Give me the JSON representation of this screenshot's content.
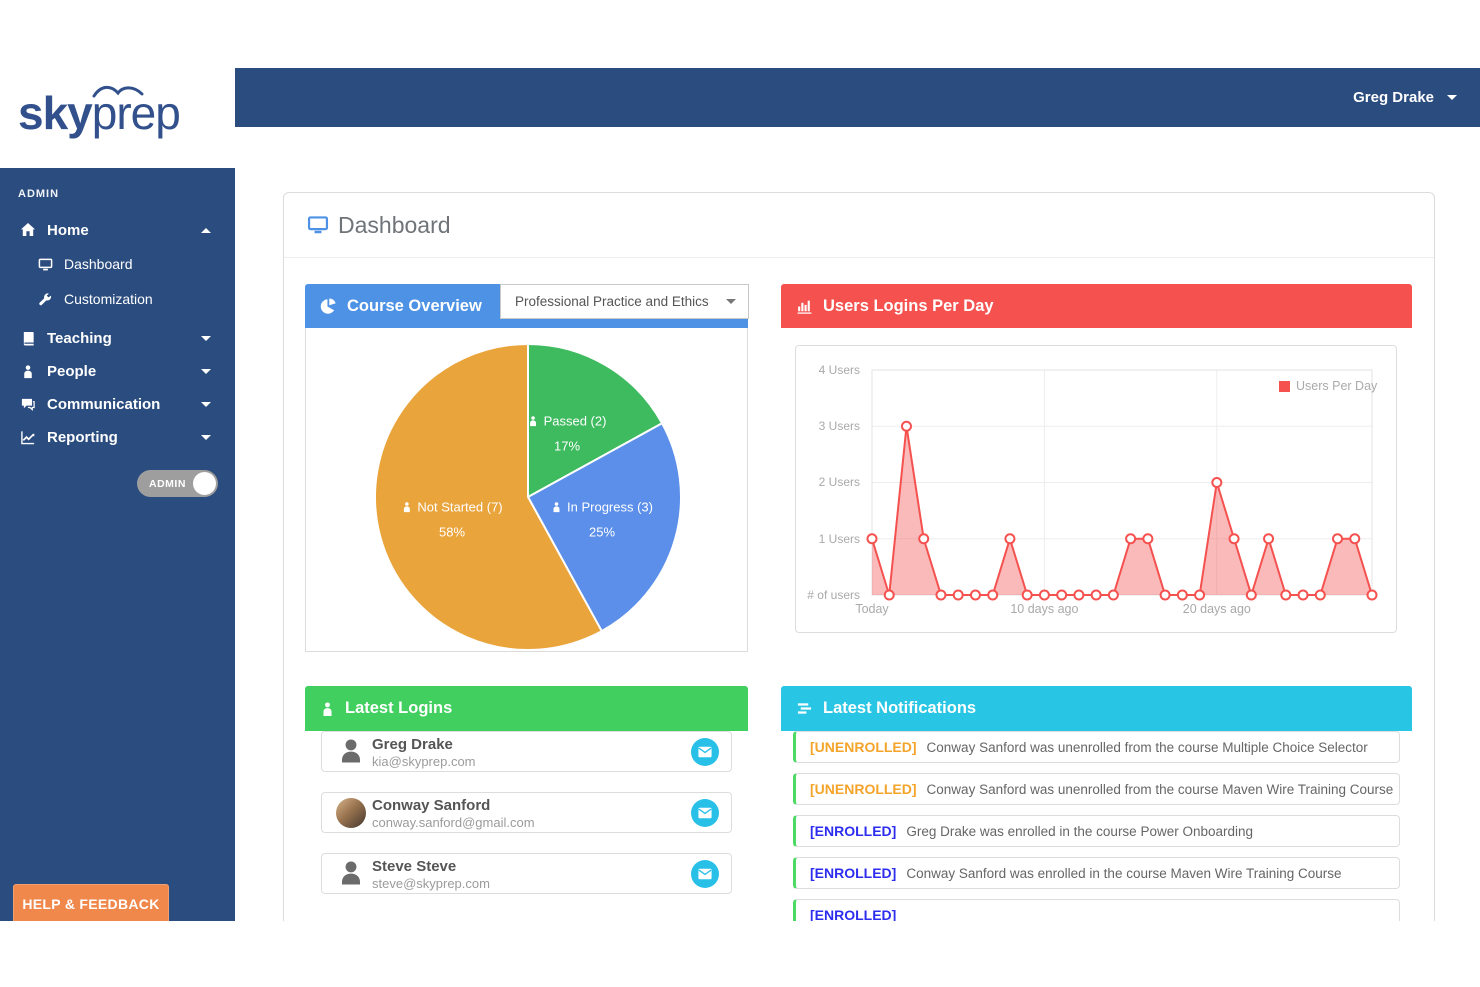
{
  "logo": {
    "text_bold": "sky",
    "text_light": "prep"
  },
  "navbar": {
    "user_menu": "Greg Drake"
  },
  "sidebar": {
    "section_label": "ADMIN",
    "items": [
      {
        "label": "Home",
        "icon": "home-icon",
        "expanded": true
      },
      {
        "label": "Dashboard",
        "icon": "monitor-icon",
        "sub": true
      },
      {
        "label": "Customization",
        "icon": "wrench-icon",
        "sub": true
      },
      {
        "label": "Teaching",
        "icon": "book-icon"
      },
      {
        "label": "People",
        "icon": "person-icon"
      },
      {
        "label": "Communication",
        "icon": "chat-icon"
      },
      {
        "label": "Reporting",
        "icon": "chart-line-icon"
      }
    ],
    "admin_toggle": {
      "label": "ADMIN",
      "state": "on"
    },
    "help_button": "HELP & FEEDBACK"
  },
  "page": {
    "title": "Dashboard"
  },
  "panels": {
    "course_overview": {
      "title": "Course Overview",
      "course_selector": "Professional Practice and Ethics"
    },
    "user_logins": {
      "title": "Users Logins Per Day"
    },
    "latest_logins": {
      "title": "Latest Logins",
      "users": [
        {
          "name": "Greg Drake",
          "email": "kia@skyprep.com",
          "avatar": "silhouette"
        },
        {
          "name": "Conway Sanford",
          "email": "conway.sanford@gmail.com",
          "avatar": "photo"
        },
        {
          "name": "Steve Steve",
          "email": "steve@skyprep.com",
          "avatar": "silhouette"
        }
      ]
    },
    "notifications": {
      "title": "Latest Notifications",
      "items": [
        {
          "tag": "[UNENROLLED]",
          "tag_color": "#f5a42a",
          "message": "Conway Sanford was unenrolled from the course Multiple Choice Selector"
        },
        {
          "tag": "[UNENROLLED]",
          "tag_color": "#f5a42a",
          "message": "Conway Sanford was unenrolled from the course Maven Wire Training Course"
        },
        {
          "tag": "[ENROLLED]",
          "tag_color": "#2d2df0",
          "message": "Greg Drake was enrolled in the course Power Onboarding"
        },
        {
          "tag": "[ENROLLED]",
          "tag_color": "#2d2df0",
          "message": "Conway Sanford was enrolled in the course Maven Wire Training Course"
        },
        {
          "tag": "[ENROLLED]",
          "tag_color": "#2d2df0",
          "message": ""
        }
      ]
    }
  },
  "chart_data": [
    {
      "type": "pie",
      "title": "Course Overview",
      "course": "Professional Practice and Ethics",
      "slices": [
        {
          "label": "Passed (2)",
          "count": 2,
          "value": 17,
          "pct_label": "17%",
          "color": "#3eba5f"
        },
        {
          "label": "In Progress (3)",
          "count": 3,
          "value": 25,
          "pct_label": "25%",
          "color": "#5b8fe9"
        },
        {
          "label": "Not Started (7)",
          "count": 7,
          "value": 58,
          "pct_label": "58%",
          "color": "#e9a43c"
        }
      ]
    },
    {
      "type": "area",
      "title": "Users Logins Per Day",
      "x_description": "last 30 days, newest (Today) at left",
      "series": [
        {
          "name": "Users Per Day",
          "color": "#f4514f",
          "values": [
            1,
            0,
            3,
            1,
            0,
            0,
            0,
            0,
            1,
            0,
            0,
            0,
            0,
            0,
            0,
            1,
            1,
            0,
            0,
            0,
            2,
            1,
            0,
            1,
            0,
            0,
            0,
            1,
            1,
            0
          ]
        }
      ],
      "xticks": [
        {
          "label": "Today",
          "day": 0
        },
        {
          "label": "10 days ago",
          "day": 10
        },
        {
          "label": "20 days ago",
          "day": 20
        }
      ],
      "yticks": [
        "4 Users",
        "3 Users",
        "2 Users",
        "1 Users",
        "# of users"
      ],
      "ylim": [
        0,
        4
      ],
      "grid": true,
      "legend_position": "top-right"
    }
  ]
}
